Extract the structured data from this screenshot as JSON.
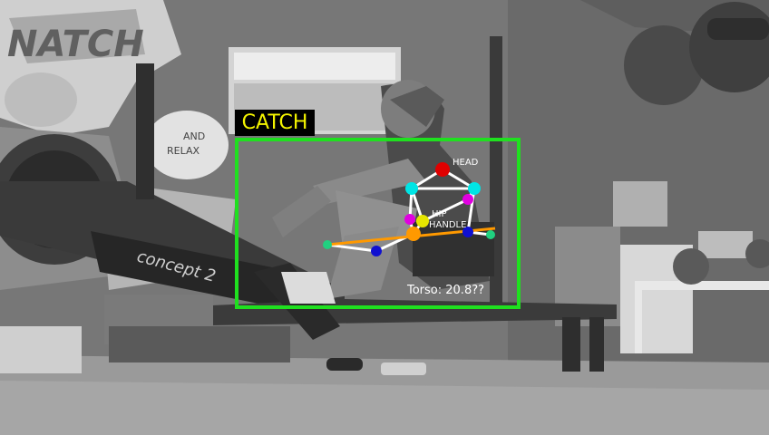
{
  "overlay": {
    "phase": "CATCH",
    "torso_readout": "Torso: 20.8??",
    "keypoint_labels": {
      "head": "HEAD",
      "hip": "HIP",
      "handle": "HANDLE"
    }
  },
  "background": {
    "wall_lettering": "NATCH",
    "sign_text_line1": "AND",
    "sign_text_line2": "RELAX",
    "machine_brand": "concept 2"
  },
  "colors": {
    "phase_text": "#f5f500",
    "bbox": "#1fe01f",
    "skeleton": "#ffffff",
    "handle_line": "#ff9900",
    "head": "#e00000",
    "shoulder": "#00e5e5",
    "elbow": "#e000e0",
    "wrist": "#e5e500",
    "knee": "#1010d0",
    "ankle": "#20d080"
  }
}
